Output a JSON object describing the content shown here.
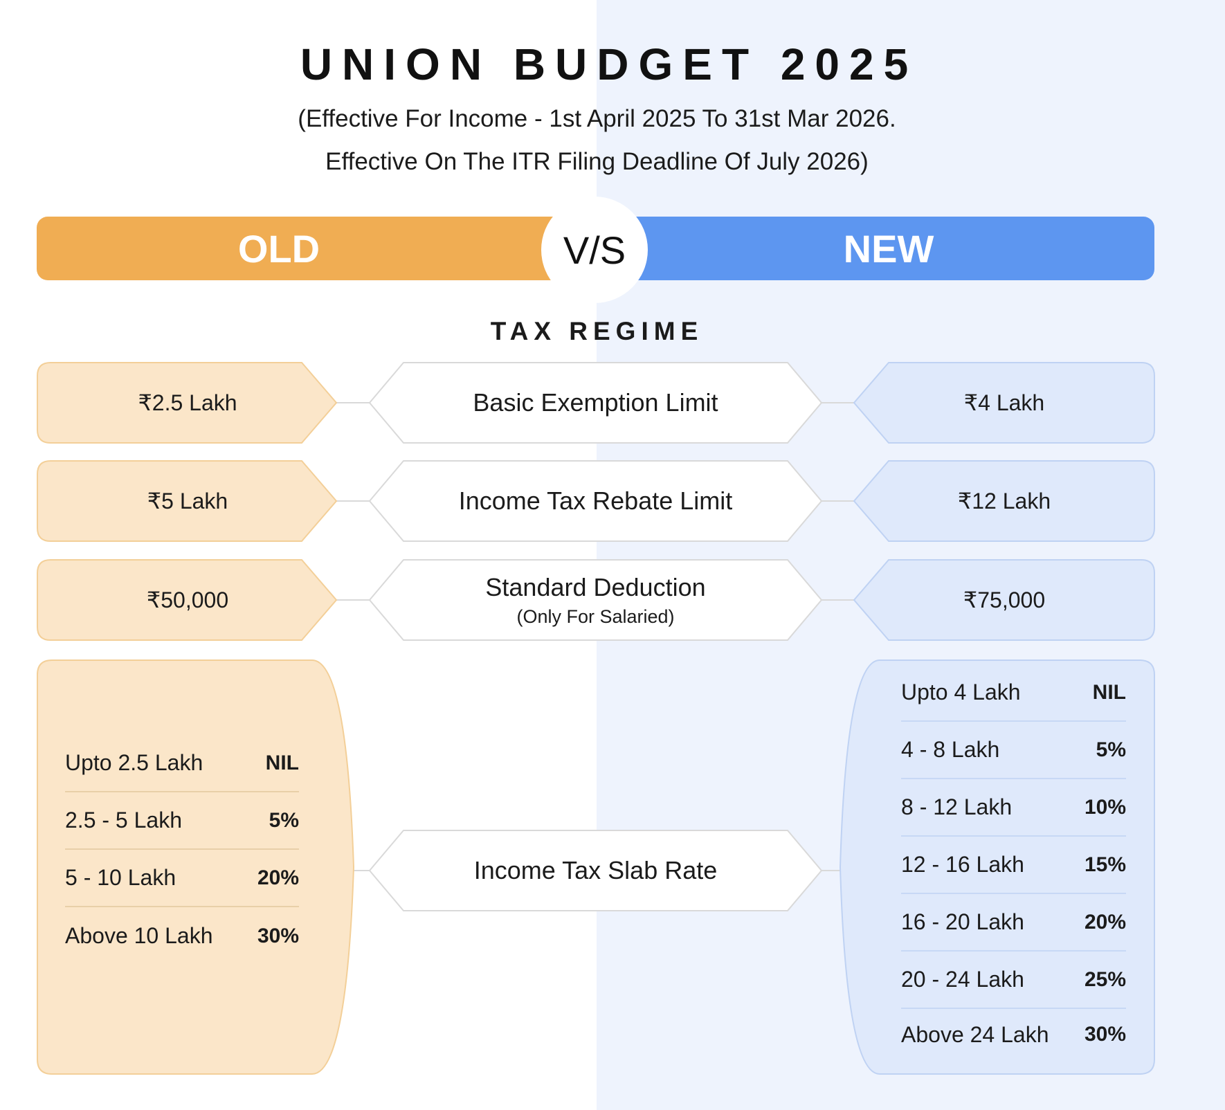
{
  "header": {
    "title": "UNION BUDGET 2025",
    "subtitle_line1": "(Effective For Income - 1st April 2025 To 31st Mar 2026.",
    "subtitle_line2": "Effective On The ITR Filing Deadline Of July 2026)"
  },
  "banner": {
    "old_label": "OLD",
    "vs_label": "V/S",
    "new_label": "NEW"
  },
  "section_label": "TAX REGIME",
  "colors": {
    "old_accent": "#f0ad53",
    "old_fill": "#fbe6c9",
    "new_accent": "#5d96f0",
    "new_fill": "#dfe9fb"
  },
  "rows": [
    {
      "old": "₹2.5 Lakh",
      "label": "Basic Exemption Limit",
      "note": "",
      "new": "₹4 Lakh"
    },
    {
      "old": "₹5 Lakh",
      "label": "Income Tax Rebate Limit",
      "note": "",
      "new": "₹12 Lakh"
    },
    {
      "old": "₹50,000",
      "label": "Standard Deduction",
      "note": "(Only For Salaried)",
      "new": "₹75,000"
    }
  ],
  "slab_label": "Income Tax Slab Rate",
  "old_slabs": [
    {
      "range": "Upto 2.5 Lakh",
      "rate": "NIL"
    },
    {
      "range": "2.5 - 5 Lakh",
      "rate": "5%"
    },
    {
      "range": "5 - 10 Lakh",
      "rate": "20%"
    },
    {
      "range": "Above 10 Lakh",
      "rate": "30%"
    }
  ],
  "new_slabs": [
    {
      "range": "Upto 4 Lakh",
      "rate": "NIL"
    },
    {
      "range": "4 - 8 Lakh",
      "rate": "5%"
    },
    {
      "range": "8 - 12 Lakh",
      "rate": "10%"
    },
    {
      "range": "12 - 16 Lakh",
      "rate": "15%"
    },
    {
      "range": "16 - 20 Lakh",
      "rate": "20%"
    },
    {
      "range": "20 - 24 Lakh",
      "rate": "25%"
    },
    {
      "range": "Above 24 Lakh",
      "rate": "30%"
    }
  ]
}
